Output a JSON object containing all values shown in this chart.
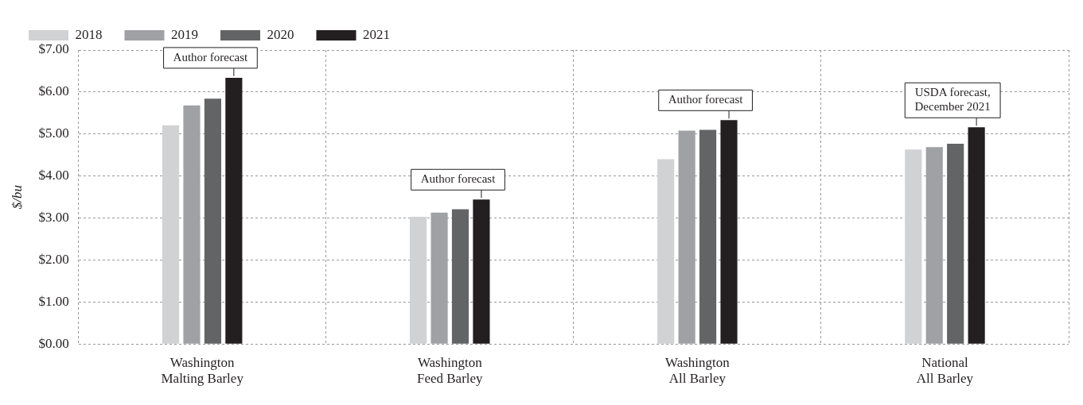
{
  "chart_data": {
    "type": "bar",
    "ylabel": "$/bu",
    "categories": [
      "Washington\nMalting Barley",
      "Washington\nFeed Barley",
      "Washington\nAll Barley",
      "National\nAll Barley"
    ],
    "series": [
      {
        "name": "2018",
        "color": "#d1d2d4",
        "values": [
          5.21,
          3.03,
          4.4,
          4.63
        ]
      },
      {
        "name": "2019",
        "color": "#a0a1a5",
        "values": [
          5.68,
          3.13,
          5.08,
          4.69
        ]
      },
      {
        "name": "2020",
        "color": "#636466",
        "values": [
          5.84,
          3.21,
          5.1,
          4.77
        ]
      },
      {
        "name": "2021",
        "color": "#231f20",
        "values": [
          6.34,
          3.44,
          5.33,
          5.16
        ]
      }
    ],
    "ylim": [
      0,
      7
    ],
    "yticks": [
      {
        "value": 0,
        "label": "$0.00"
      },
      {
        "value": 1,
        "label": "$1.00"
      },
      {
        "value": 2,
        "label": "$2.00"
      },
      {
        "value": 3,
        "label": "$3.00"
      },
      {
        "value": 4,
        "label": "$4.00"
      },
      {
        "value": 5,
        "label": "$5.00"
      },
      {
        "value": 6,
        "label": "$6.00"
      },
      {
        "value": 7,
        "label": "$7.00"
      }
    ],
    "annotations": [
      "Author forecast",
      "Author forecast",
      "Author forecast",
      "USDA forecast,\nDecember 2021"
    ],
    "grid": true,
    "legend": "top left"
  }
}
